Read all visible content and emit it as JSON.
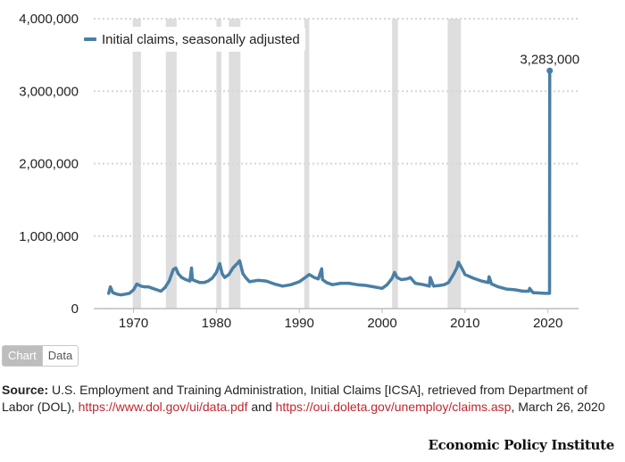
{
  "chart_data": {
    "type": "line",
    "title": "",
    "xlabel": "",
    "ylabel": "",
    "xlim": [
      1965.2,
      2023.7
    ],
    "ylim": [
      0,
      4000000
    ],
    "grid": true,
    "legend_position": "top-left",
    "colors": {
      "line": "#4a7fa5",
      "recession": "#dedede",
      "grid": "#d6d6d6"
    },
    "y_ticks": [
      0,
      1000000,
      2000000,
      3000000,
      4000000
    ],
    "y_tick_labels": [
      "0",
      "1,000,000",
      "2,000,000",
      "3,000,000",
      "4,000,000"
    ],
    "x_ticks": [
      1970,
      1980,
      1990,
      2000,
      2010,
      2020
    ],
    "x_tick_labels": [
      "1970",
      "1980",
      "1990",
      "2000",
      "2010",
      "2020"
    ],
    "recessions": [
      [
        1969.9,
        1970.9
      ],
      [
        1973.9,
        1975.2
      ],
      [
        1980.0,
        1980.6
      ],
      [
        1981.5,
        1982.9
      ],
      [
        1990.6,
        1991.2
      ],
      [
        2001.2,
        2001.9
      ],
      [
        2007.9,
        2009.5
      ]
    ],
    "series": [
      {
        "name": "Initial claims, seasonally adjusted",
        "x": [
          1967.0,
          1967.2,
          1967.5,
          1968.0,
          1968.5,
          1969.0,
          1969.5,
          1970.0,
          1970.4,
          1970.9,
          1971.3,
          1971.8,
          1972.3,
          1972.8,
          1973.3,
          1973.8,
          1974.3,
          1974.8,
          1975.1,
          1975.4,
          1975.8,
          1976.3,
          1976.8,
          1977.0,
          1977.1,
          1977.5,
          1978.0,
          1978.5,
          1979.0,
          1979.5,
          1980.0,
          1980.4,
          1980.7,
          1981.0,
          1981.5,
          1982.0,
          1982.5,
          1982.8,
          1983.2,
          1983.6,
          1984.0,
          1985.0,
          1986.0,
          1987.0,
          1988.0,
          1989.0,
          1990.0,
          1990.6,
          1991.2,
          1991.8,
          1992.3,
          1992.7,
          1992.8,
          1993.3,
          1994.0,
          1995.0,
          1996.0,
          1997.0,
          1998.0,
          1999.0,
          2000.0,
          2000.6,
          2001.2,
          2001.5,
          2001.8,
          2002.3,
          2003.0,
          2003.4,
          2004.0,
          2005.0,
          2005.7,
          2005.8,
          2006.2,
          2007.0,
          2007.5,
          2008.0,
          2008.6,
          2009.0,
          2009.2,
          2009.6,
          2010.0,
          2011.0,
          2012.0,
          2012.8,
          2012.9,
          2013.2,
          2014.0,
          2015.0,
          2016.0,
          2017.0,
          2017.7,
          2017.8,
          2018.2,
          2019.0,
          2019.6,
          2020.1,
          2020.2,
          2020.22
        ],
        "values": [
          210000,
          300000,
          220000,
          200000,
          190000,
          200000,
          210000,
          260000,
          340000,
          310000,
          300000,
          300000,
          280000,
          260000,
          240000,
          290000,
          380000,
          540000,
          560000,
          480000,
          430000,
          400000,
          380000,
          560000,
          400000,
          380000,
          360000,
          360000,
          380000,
          420000,
          500000,
          620000,
          480000,
          430000,
          470000,
          560000,
          620000,
          660000,
          480000,
          420000,
          370000,
          390000,
          380000,
          340000,
          310000,
          330000,
          370000,
          420000,
          470000,
          430000,
          410000,
          550000,
          400000,
          360000,
          330000,
          350000,
          350000,
          330000,
          320000,
          300000,
          280000,
          330000,
          420000,
          500000,
          430000,
          400000,
          410000,
          430000,
          350000,
          330000,
          310000,
          430000,
          310000,
          320000,
          330000,
          360000,
          470000,
          560000,
          640000,
          560000,
          470000,
          420000,
          380000,
          360000,
          440000,
          340000,
          300000,
          270000,
          260000,
          240000,
          240000,
          280000,
          220000,
          215000,
          210000,
          210000,
          211000,
          3283000
        ]
      }
    ],
    "annotations": [
      {
        "x": 2020.22,
        "y": 3283000,
        "text": "3,283,000"
      }
    ]
  },
  "toggle": {
    "chart_label": "Chart",
    "data_label": "Data"
  },
  "source": {
    "label": "Source:",
    "text_1": " U.S. Employment and Training Administration, Initial Claims [ICSA], retrieved from Department of Labor (DOL), ",
    "link_1": "https://www.dol.gov/ui/data.pdf",
    "text_2": " and ",
    "link_2": "https://oui.doleta.gov/unemploy/claims.asp",
    "text_3": ", March 26, 2020"
  },
  "brand": "Economic Policy Institute"
}
